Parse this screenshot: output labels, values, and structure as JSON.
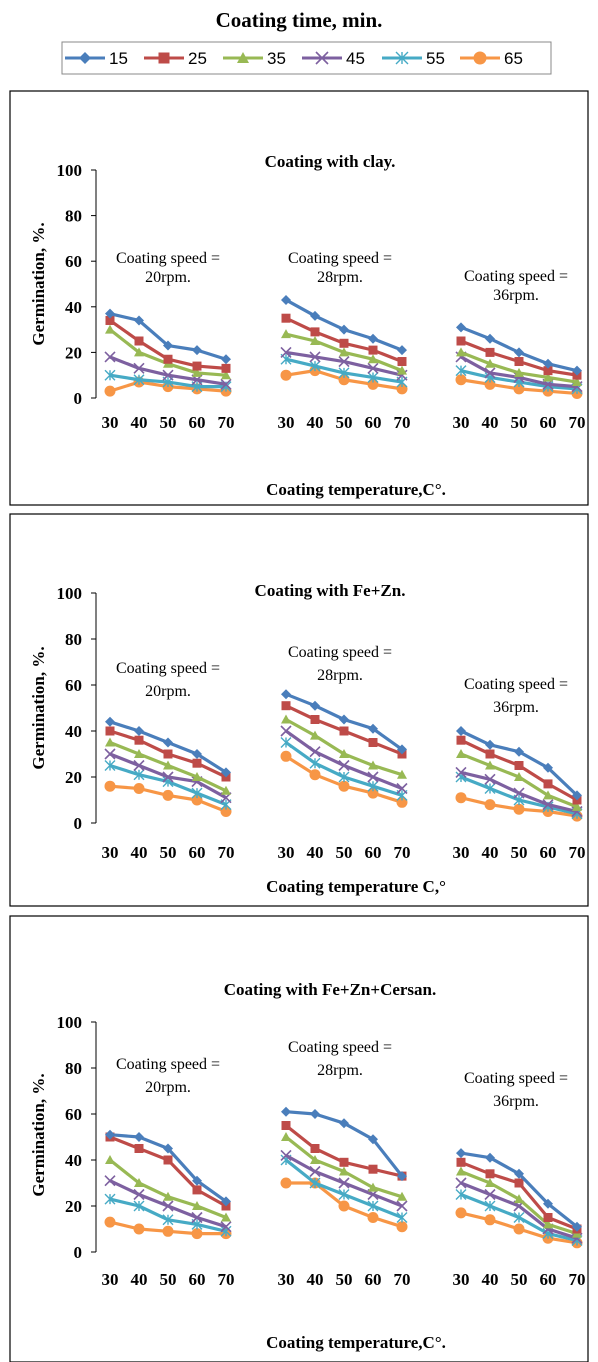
{
  "figure_title": "Coating time, min.",
  "legend": {
    "items": [
      {
        "label": "15",
        "color": "#4a7ebb",
        "marker": "diamond"
      },
      {
        "label": "25",
        "color": "#be4b48",
        "marker": "square"
      },
      {
        "label": "35",
        "color": "#98b954",
        "marker": "triangle"
      },
      {
        "label": "45",
        "color": "#7d60a0",
        "marker": "x"
      },
      {
        "label": "55",
        "color": "#46aac5",
        "marker": "star"
      },
      {
        "label": "65",
        "color": "#f79646",
        "marker": "circle"
      }
    ]
  },
  "chart_data": [
    {
      "type": "line",
      "title": "Coating with clay.",
      "xlabel": "Coating temperature,C°.",
      "ylabel": "Germination, %.",
      "ylim": [
        0,
        100
      ],
      "yticks": [
        0,
        20,
        40,
        60,
        80,
        100
      ],
      "x": [
        30,
        40,
        50,
        60,
        70
      ],
      "groups": [
        {
          "annotation": [
            "Coating speed =",
            "20rpm."
          ],
          "series": [
            {
              "name": "15",
              "values": [
                37,
                34,
                23,
                21,
                17
              ]
            },
            {
              "name": "25",
              "values": [
                34,
                25,
                17,
                14,
                13
              ]
            },
            {
              "name": "35",
              "values": [
                30,
                20,
                15,
                11,
                10
              ]
            },
            {
              "name": "45",
              "values": [
                18,
                13,
                10,
                8,
                6
              ]
            },
            {
              "name": "55",
              "values": [
                10,
                8,
                7,
                5,
                5
              ]
            },
            {
              "name": "65",
              "values": [
                3,
                7,
                5,
                4,
                3
              ]
            }
          ]
        },
        {
          "annotation": [
            "Coating speed =",
            "28rpm."
          ],
          "series": [
            {
              "name": "15",
              "values": [
                43,
                36,
                30,
                26,
                21
              ]
            },
            {
              "name": "25",
              "values": [
                35,
                29,
                24,
                21,
                16
              ]
            },
            {
              "name": "35",
              "values": [
                28,
                25,
                20,
                17,
                12
              ]
            },
            {
              "name": "45",
              "values": [
                20,
                18,
                16,
                13,
                10
              ]
            },
            {
              "name": "55",
              "values": [
                17,
                14,
                11,
                9,
                7
              ]
            },
            {
              "name": "65",
              "values": [
                10,
                12,
                8,
                6,
                4
              ]
            }
          ]
        },
        {
          "annotation": [
            "Coating speed =",
            "36rpm."
          ],
          "series": [
            {
              "name": "15",
              "values": [
                31,
                26,
                20,
                15,
                12
              ]
            },
            {
              "name": "25",
              "values": [
                25,
                20,
                16,
                12,
                10
              ]
            },
            {
              "name": "35",
              "values": [
                20,
                15,
                11,
                9,
                7
              ]
            },
            {
              "name": "45",
              "values": [
                18,
                11,
                9,
                6,
                5
              ]
            },
            {
              "name": "55",
              "values": [
                12,
                9,
                7,
                5,
                4
              ]
            },
            {
              "name": "65",
              "values": [
                8,
                6,
                4,
                3,
                2
              ]
            }
          ]
        }
      ]
    },
    {
      "type": "line",
      "title": "Coating with Fe+Zn.",
      "xlabel": "Coating temperature C,°",
      "ylabel": "Germination, %.",
      "ylim": [
        0,
        100
      ],
      "yticks": [
        0,
        20,
        40,
        60,
        80,
        100
      ],
      "x": [
        30,
        40,
        50,
        60,
        70
      ],
      "groups": [
        {
          "annotation": [
            "Coating speed =",
            "20rpm."
          ],
          "series": [
            {
              "name": "15",
              "values": [
                44,
                40,
                35,
                30,
                22
              ]
            },
            {
              "name": "25",
              "values": [
                40,
                36,
                30,
                26,
                20
              ]
            },
            {
              "name": "35",
              "values": [
                35,
                30,
                25,
                20,
                14
              ]
            },
            {
              "name": "45",
              "values": [
                30,
                25,
                20,
                18,
                11
              ]
            },
            {
              "name": "55",
              "values": [
                25,
                21,
                18,
                13,
                8
              ]
            },
            {
              "name": "65",
              "values": [
                16,
                15,
                12,
                10,
                5
              ]
            }
          ]
        },
        {
          "annotation": [
            "Coating speed =",
            "28rpm."
          ],
          "series": [
            {
              "name": "15",
              "values": [
                56,
                51,
                45,
                41,
                32
              ]
            },
            {
              "name": "25",
              "values": [
                51,
                45,
                40,
                35,
                30
              ]
            },
            {
              "name": "35",
              "values": [
                45,
                38,
                30,
                25,
                21
              ]
            },
            {
              "name": "45",
              "values": [
                40,
                31,
                25,
                20,
                15
              ]
            },
            {
              "name": "55",
              "values": [
                35,
                26,
                20,
                16,
                12
              ]
            },
            {
              "name": "65",
              "values": [
                29,
                21,
                16,
                13,
                9
              ]
            }
          ]
        },
        {
          "annotation": [
            "Coating speed =",
            "36rpm."
          ],
          "series": [
            {
              "name": "15",
              "values": [
                40,
                34,
                31,
                24,
                12
              ]
            },
            {
              "name": "25",
              "values": [
                36,
                30,
                25,
                17,
                10
              ]
            },
            {
              "name": "35",
              "values": [
                30,
                25,
                20,
                12,
                7
              ]
            },
            {
              "name": "45",
              "values": [
                22,
                19,
                13,
                8,
                5
              ]
            },
            {
              "name": "55",
              "values": [
                20,
                15,
                10,
                7,
                4
              ]
            },
            {
              "name": "65",
              "values": [
                11,
                8,
                6,
                5,
                3
              ]
            }
          ]
        }
      ]
    },
    {
      "type": "line",
      "title": "Coating with Fe+Zn+Cersan.",
      "xlabel": "Coating temperature,C°.",
      "ylabel": "Germination, %.",
      "ylim": [
        0,
        100
      ],
      "yticks": [
        0,
        20,
        40,
        60,
        80,
        100
      ],
      "x": [
        30,
        40,
        50,
        60,
        70
      ],
      "groups": [
        {
          "annotation": [
            "Coating speed =",
            "20rpm."
          ],
          "series": [
            {
              "name": "15",
              "values": [
                51,
                50,
                45,
                31,
                22
              ]
            },
            {
              "name": "25",
              "values": [
                50,
                45,
                40,
                27,
                20
              ]
            },
            {
              "name": "35",
              "values": [
                40,
                30,
                24,
                20,
                15
              ]
            },
            {
              "name": "45",
              "values": [
                31,
                25,
                20,
                15,
                11
              ]
            },
            {
              "name": "55",
              "values": [
                23,
                20,
                14,
                12,
                9
              ]
            },
            {
              "name": "65",
              "values": [
                13,
                10,
                9,
                8,
                8
              ]
            }
          ]
        },
        {
          "annotation": [
            "Coating speed =",
            "28rpm."
          ],
          "series": [
            {
              "name": "15",
              "values": [
                61,
                60,
                56,
                49,
                33
              ]
            },
            {
              "name": "25",
              "values": [
                55,
                45,
                39,
                36,
                33
              ]
            },
            {
              "name": "35",
              "values": [
                50,
                40,
                35,
                28,
                24
              ]
            },
            {
              "name": "45",
              "values": [
                42,
                35,
                30,
                25,
                20
              ]
            },
            {
              "name": "55",
              "values": [
                40,
                30,
                25,
                20,
                15
              ]
            },
            {
              "name": "65",
              "values": [
                30,
                30,
                20,
                15,
                11
              ]
            }
          ]
        },
        {
          "annotation": [
            "Coating speed =",
            "36rpm."
          ],
          "series": [
            {
              "name": "15",
              "values": [
                43,
                41,
                34,
                21,
                11
              ]
            },
            {
              "name": "25",
              "values": [
                39,
                34,
                30,
                15,
                10
              ]
            },
            {
              "name": "35",
              "values": [
                35,
                30,
                23,
                12,
                8
              ]
            },
            {
              "name": "45",
              "values": [
                30,
                25,
                20,
                10,
                6
              ]
            },
            {
              "name": "55",
              "values": [
                25,
                20,
                15,
                8,
                5
              ]
            },
            {
              "name": "65",
              "values": [
                17,
                14,
                10,
                6,
                4
              ]
            }
          ]
        }
      ]
    }
  ]
}
